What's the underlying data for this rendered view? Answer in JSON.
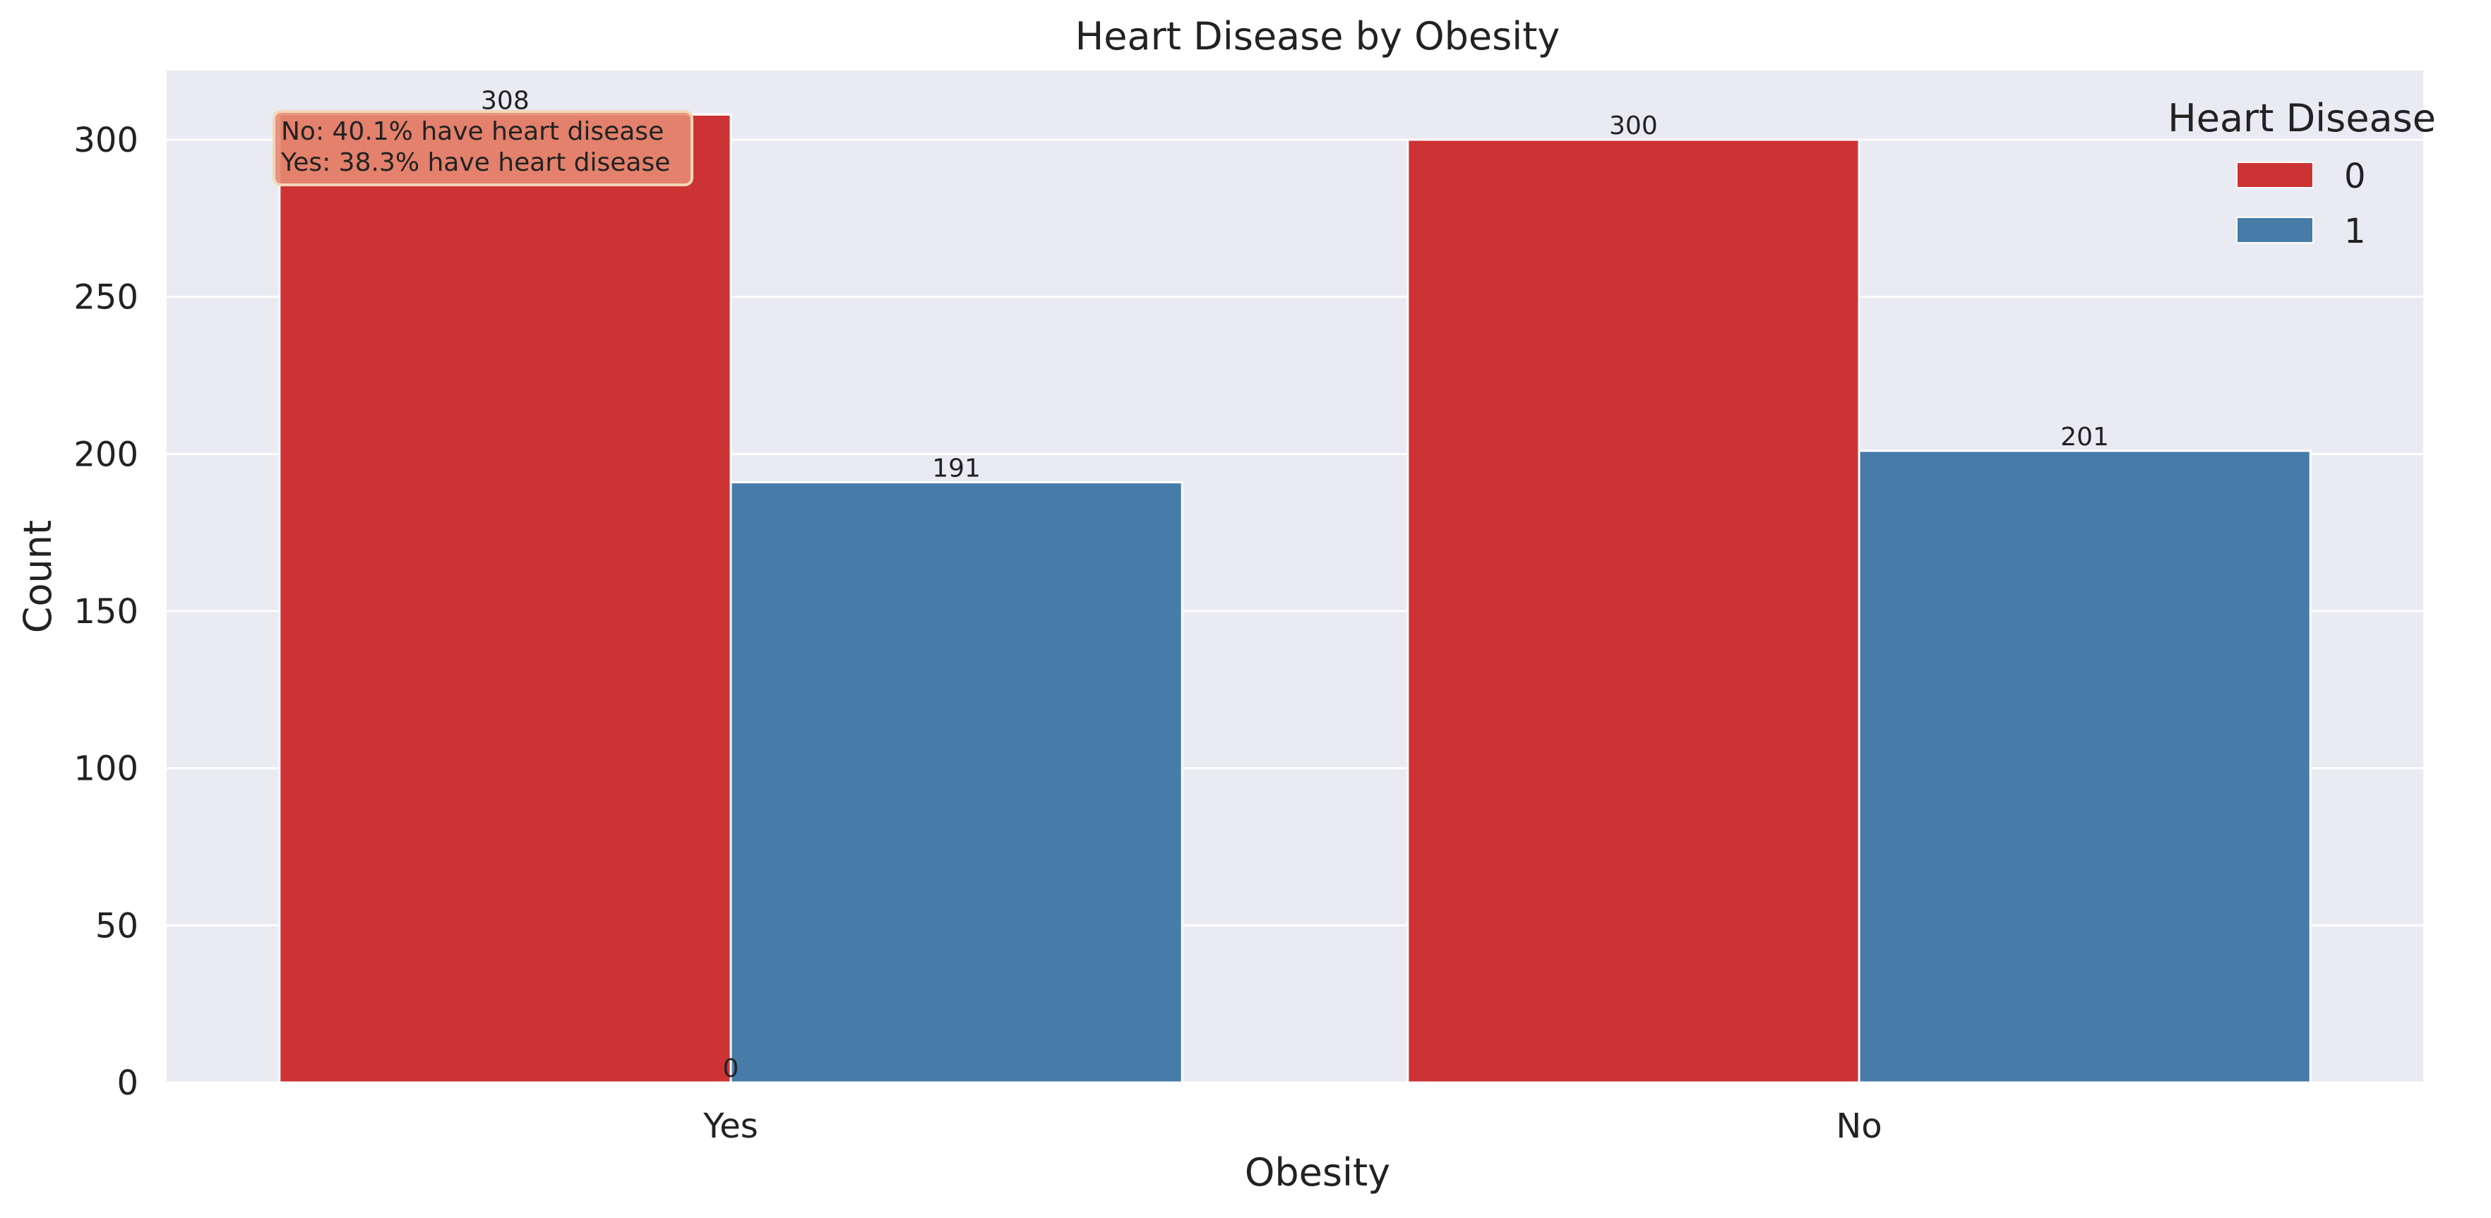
{
  "chart_data": {
    "type": "bar",
    "title": "Heart Disease by Obesity",
    "xlabel": "Obesity",
    "ylabel": "Count",
    "categories": [
      "Yes",
      "No"
    ],
    "series": [
      {
        "name": "0",
        "values": [
          308,
          300
        ],
        "color": "#cd3334"
      },
      {
        "name": "1",
        "values": [
          191,
          201
        ],
        "color": "#477ca8"
      }
    ],
    "bar_labels": [
      [
        "308",
        "300"
      ],
      [
        "191",
        "201"
      ]
    ],
    "extra_label": "0",
    "ylim": [
      0,
      322
    ],
    "yticks": [
      0,
      50,
      100,
      150,
      200,
      250,
      300
    ],
    "grid": true,
    "legend": {
      "title": "Heart Disease",
      "position": "top-right"
    },
    "annotation": {
      "lines": [
        "No: 40.1% have heart disease",
        "Yes: 38.3% have heart disease"
      ],
      "position": "top-left"
    },
    "colors": {
      "background": "#eaeaf2",
      "grid": "#ffffff",
      "annotation_box": "#e58a72"
    }
  }
}
